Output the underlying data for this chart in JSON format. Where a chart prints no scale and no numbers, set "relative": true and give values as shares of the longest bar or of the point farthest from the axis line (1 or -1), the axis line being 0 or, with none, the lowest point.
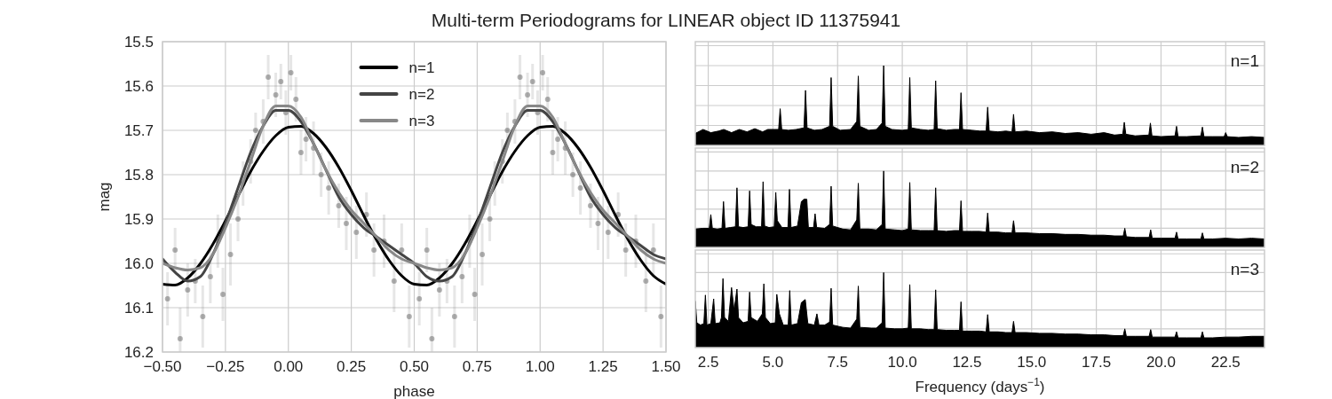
{
  "chart_data": [
    {
      "type": "line",
      "title": "Multi-term Periodograms for LINEAR object ID 11375941",
      "xlabel": "phase",
      "ylabel": "mag",
      "xlim": [
        -0.5,
        1.5
      ],
      "ylim": [
        16.2,
        15.5
      ],
      "xticks": [
        {
          "value": -0.5,
          "label": "−0.50"
        },
        {
          "value": -0.25,
          "label": "−0.25"
        },
        {
          "value": 0,
          "label": "0.00"
        },
        {
          "value": 0.25,
          "label": "0.25"
        },
        {
          "value": 0.5,
          "label": "0.50"
        },
        {
          "value": 0.75,
          "label": "0.75"
        },
        {
          "value": 1,
          "label": "1.00"
        },
        {
          "value": 1.25,
          "label": "1.25"
        },
        {
          "value": 1.5,
          "label": "1.50"
        }
      ],
      "yticks": [
        15.5,
        15.6,
        15.7,
        15.8,
        15.9,
        {
          "value": 16,
          "label": "16.0"
        },
        16.1,
        16.2
      ],
      "grid": true,
      "legend": "top",
      "series": [
        {
          "type": "scatter",
          "color": "#555555",
          "x": [
            -0.48,
            -0.45,
            -0.43,
            -0.4,
            -0.37,
            -0.34,
            -0.31,
            -0.28,
            -0.26,
            -0.23,
            -0.2,
            -0.18,
            -0.15,
            -0.13,
            -0.1,
            -0.08,
            -0.05,
            -0.03,
            -0.01,
            0.01,
            0.03,
            0.05,
            0.07,
            0.1,
            0.13,
            0.16,
            0.2,
            0.23,
            0.27,
            0.31,
            0.34,
            0.38,
            0.42,
            0.45,
            0.48,
            0.52,
            0.55,
            0.57,
            0.6,
            0.63,
            0.66,
            0.69,
            0.72,
            0.74,
            0.77,
            0.8,
            0.82,
            0.85,
            0.87,
            0.9,
            0.92,
            0.95,
            0.97,
            0.99,
            1.01,
            1.03,
            1.05,
            1.07,
            1.1,
            1.13,
            1.16,
            1.2,
            1.23,
            1.27,
            1.31,
            1.34,
            1.38,
            1.42,
            1.45,
            1.48
          ],
          "values": [
            16.08,
            15.97,
            16.17,
            16.06,
            16.04,
            16.12,
            16.03,
            15.95,
            16.07,
            15.98,
            15.9,
            15.82,
            15.77,
            15.7,
            15.68,
            15.58,
            15.62,
            15.59,
            15.66,
            15.57,
            15.63,
            15.75,
            15.72,
            15.74,
            15.8,
            15.83,
            15.87,
            15.91,
            15.93,
            15.89,
            15.97,
            15.95,
            16.04,
            15.97,
            16.12,
            16.08,
            15.97,
            16.17,
            16.06,
            16.04,
            16.12,
            16.03,
            15.95,
            16.07,
            15.98,
            15.9,
            15.82,
            15.77,
            15.7,
            15.68,
            15.58,
            15.62,
            15.59,
            15.66,
            15.57,
            15.63,
            15.75,
            15.72,
            15.74,
            15.8,
            15.83,
            15.87,
            15.91,
            15.93,
            15.89,
            15.97,
            15.95,
            16.04,
            15.97,
            16.12
          ],
          "errors": [
            0.06,
            0.05,
            0.07,
            0.06,
            0.05,
            0.07,
            0.06,
            0.06,
            0.06,
            0.07,
            0.05,
            0.05,
            0.05,
            0.04,
            0.05,
            0.05,
            0.05,
            0.04,
            0.05,
            0.04,
            0.05,
            0.05,
            0.05,
            0.06,
            0.05,
            0.06,
            0.05,
            0.06,
            0.06,
            0.05,
            0.06,
            0.06,
            0.07,
            0.06,
            0.07,
            0.06,
            0.05,
            0.07,
            0.06,
            0.05,
            0.07,
            0.06,
            0.06,
            0.06,
            0.07,
            0.05,
            0.05,
            0.05,
            0.04,
            0.05,
            0.05,
            0.05,
            0.04,
            0.05,
            0.04,
            0.05,
            0.05,
            0.05,
            0.06,
            0.05,
            0.06,
            0.05,
            0.06,
            0.06,
            0.05,
            0.06,
            0.06,
            0.07,
            0.06,
            0.07
          ]
        },
        {
          "name": "n=1",
          "color": "#000000",
          "x": [
            -0.5,
            -0.45,
            -0.4,
            -0.35,
            -0.3,
            -0.25,
            -0.2,
            -0.15,
            -0.1,
            -0.05,
            0,
            0.05,
            0.1,
            0.15,
            0.2,
            0.25,
            0.3,
            0.35,
            0.4,
            0.45,
            0.5,
            0.55,
            0.6,
            0.65,
            0.7,
            0.75,
            0.8,
            0.85,
            0.9,
            0.95,
            1,
            1.05,
            1.1,
            1.15,
            1.2,
            1.25,
            1.3,
            1.35,
            1.4,
            1.45,
            1.5
          ],
          "values": [
            16.047,
            16.049,
            16.033,
            16.001,
            15.957,
            15.904,
            15.848,
            15.793,
            15.747,
            15.712,
            15.693,
            15.691,
            15.707,
            15.739,
            15.783,
            15.836,
            15.893,
            15.947,
            15.993,
            16.028,
            16.047,
            16.049,
            16.033,
            16.001,
            15.957,
            15.904,
            15.848,
            15.793,
            15.747,
            15.712,
            15.693,
            15.691,
            15.707,
            15.739,
            15.783,
            15.836,
            15.893,
            15.947,
            15.993,
            16.028,
            16.047
          ]
        },
        {
          "name": "n=2",
          "color": "#444444",
          "x": [
            -0.5,
            -0.45,
            -0.4,
            -0.35,
            -0.3,
            -0.25,
            -0.2,
            -0.15,
            -0.1,
            -0.05,
            0,
            0.05,
            0.1,
            0.15,
            0.2,
            0.25,
            0.3,
            0.35,
            0.4,
            0.45,
            0.5,
            0.55,
            0.6,
            0.65,
            0.7,
            0.75,
            0.8,
            0.85,
            0.9,
            0.95,
            1,
            1.05,
            1.1,
            1.15,
            1.2,
            1.25,
            1.3,
            1.35,
            1.4,
            1.45,
            1.5
          ],
          "values": [
            15.99,
            16.02,
            16.04,
            16.03,
            15.98,
            15.91,
            15.83,
            15.75,
            15.69,
            15.655,
            15.655,
            15.68,
            15.73,
            15.79,
            15.85,
            15.89,
            15.92,
            15.94,
            15.96,
            15.98,
            16.0,
            16.03,
            16.04,
            16.03,
            15.98,
            15.91,
            15.83,
            15.75,
            15.69,
            15.655,
            15.655,
            15.68,
            15.73,
            15.79,
            15.85,
            15.89,
            15.92,
            15.94,
            15.96,
            15.98,
            15.99
          ]
        },
        {
          "name": "n=3",
          "color": "#888888",
          "x": [
            -0.5,
            -0.45,
            -0.4,
            -0.35,
            -0.3,
            -0.25,
            -0.2,
            -0.15,
            -0.1,
            -0.05,
            0,
            0.05,
            0.1,
            0.15,
            0.2,
            0.25,
            0.3,
            0.35,
            0.4,
            0.45,
            0.5,
            0.55,
            0.6,
            0.65,
            0.7,
            0.75,
            0.8,
            0.85,
            0.9,
            0.95,
            1,
            1.05,
            1.1,
            1.15,
            1.2,
            1.25,
            1.3,
            1.35,
            1.4,
            1.45,
            1.5
          ],
          "values": [
            16.0,
            16.01,
            16.015,
            16.01,
            15.98,
            15.92,
            15.85,
            15.77,
            15.69,
            15.645,
            15.645,
            15.67,
            15.73,
            15.79,
            15.84,
            15.88,
            15.91,
            15.94,
            15.97,
            15.99,
            16.0,
            16.01,
            16.015,
            16.01,
            15.98,
            15.92,
            15.85,
            15.77,
            15.69,
            15.645,
            15.645,
            15.67,
            15.73,
            15.79,
            15.84,
            15.88,
            15.91,
            15.94,
            15.97,
            15.99,
            16.0
          ]
        }
      ]
    },
    {
      "type": "area",
      "relative": true,
      "xlim": [
        2,
        24
      ],
      "xticks": [
        2.5,
        5,
        7.5,
        10,
        12.5,
        15,
        17.5,
        20,
        22.5
      ],
      "tick_labels": false,
      "grid": true,
      "annotations": [
        "n=1"
      ],
      "series": [
        {
          "color": "#000000",
          "x": [
            2.0,
            2.3,
            2.6,
            2.9,
            3.1,
            3.4,
            3.7,
            4.0,
            4.3,
            4.6,
            4.8,
            5.22,
            5.28,
            5.34,
            5.6,
            5.9,
            6.2,
            6.26,
            6.32,
            6.6,
            6.9,
            7.19,
            7.25,
            7.31,
            7.6,
            8.0,
            8.24,
            8.3,
            8.36,
            8.7,
            9.0,
            9.22,
            9.28,
            9.34,
            9.6,
            10.0,
            10.23,
            10.29,
            10.35,
            10.7,
            11.0,
            11.23,
            11.29,
            11.35,
            11.7,
            12.0,
            12.21,
            12.27,
            12.33,
            12.7,
            13.0,
            13.24,
            13.3,
            13.36,
            13.7,
            14.0,
            14.24,
            14.3,
            14.36,
            14.8,
            15.3,
            15.8,
            16.3,
            16.8,
            17.3,
            17.8,
            18.2,
            18.52,
            18.58,
            18.64,
            19.0,
            19.53,
            19.59,
            19.65,
            20.0,
            20.54,
            20.6,
            20.66,
            21.0,
            21.54,
            21.6,
            21.66,
            22.0,
            22.44,
            22.5,
            22.56,
            23.0,
            23.5,
            24.0
          ],
          "values": [
            0.15,
            0.2,
            0.16,
            0.18,
            0.2,
            0.16,
            0.2,
            0.17,
            0.21,
            0.17,
            0.2,
            0.2,
            0.46,
            0.2,
            0.19,
            0.2,
            0.22,
            0.69,
            0.22,
            0.19,
            0.2,
            0.24,
            0.85,
            0.24,
            0.19,
            0.2,
            0.3,
            0.87,
            0.24,
            0.19,
            0.2,
            0.28,
            1,
            0.24,
            0.2,
            0.19,
            0.2,
            0.85,
            0.22,
            0.2,
            0.19,
            0.2,
            0.81,
            0.21,
            0.19,
            0.2,
            0.2,
            0.66,
            0.2,
            0.19,
            0.18,
            0.18,
            0.48,
            0.18,
            0.17,
            0.18,
            0.17,
            0.39,
            0.17,
            0.18,
            0.16,
            0.17,
            0.15,
            0.16,
            0.14,
            0.16,
            0.13,
            0.14,
            0.29,
            0.14,
            0.12,
            0.13,
            0.28,
            0.12,
            0.11,
            0.12,
            0.24,
            0.11,
            0.11,
            0.12,
            0.23,
            0.11,
            0.11,
            0.11,
            0.16,
            0.11,
            0.1,
            0.11,
            0.1
          ]
        }
      ]
    },
    {
      "type": "area",
      "relative": true,
      "xlim": [
        2,
        24
      ],
      "xticks": [
        2.5,
        5,
        7.5,
        10,
        12.5,
        15,
        17.5,
        20,
        22.5
      ],
      "tick_labels": false,
      "grid": true,
      "annotations": [
        "n=2"
      ],
      "series": [
        {
          "color": "#000000",
          "x": [
            2.0,
            2.3,
            2.54,
            2.6,
            2.66,
            2.85,
            3.03,
            3.09,
            3.15,
            3.35,
            3.55,
            3.61,
            3.67,
            3.85,
            4.04,
            4.1,
            4.16,
            4.35,
            4.56,
            4.62,
            4.68,
            4.85,
            5.05,
            5.11,
            5.17,
            5.35,
            5.58,
            5.64,
            5.7,
            5.95,
            6.1,
            6.2,
            6.31,
            6.37,
            6.57,
            6.63,
            6.69,
            7.0,
            7.19,
            7.25,
            7.31,
            7.7,
            8.0,
            8.24,
            8.3,
            8.36,
            8.7,
            9.0,
            9.22,
            9.28,
            9.34,
            9.7,
            10.0,
            10.23,
            10.29,
            10.35,
            10.7,
            11.0,
            11.23,
            11.29,
            11.35,
            11.7,
            12.0,
            12.21,
            12.27,
            12.33,
            12.7,
            13.0,
            13.24,
            13.3,
            13.36,
            13.7,
            14.0,
            14.24,
            14.3,
            14.36,
            14.8,
            15.3,
            15.8,
            16.3,
            16.8,
            17.3,
            17.8,
            18.2,
            18.54,
            18.6,
            18.66,
            19.0,
            19.54,
            19.6,
            19.66,
            20.0,
            20.54,
            20.6,
            20.66,
            21.0,
            21.54,
            21.6,
            21.66,
            22.0,
            22.5,
            23.0,
            23.5,
            24.0
          ],
          "values": [
            0.24,
            0.25,
            0.25,
            0.43,
            0.25,
            0.24,
            0.25,
            0.6,
            0.25,
            0.26,
            0.27,
            0.78,
            0.27,
            0.26,
            0.27,
            0.74,
            0.3,
            0.27,
            0.27,
            0.86,
            0.28,
            0.26,
            0.27,
            0.72,
            0.35,
            0.26,
            0.26,
            0.76,
            0.26,
            0.28,
            0.6,
            0.63,
            0.63,
            0.26,
            0.26,
            0.44,
            0.26,
            0.25,
            0.3,
            0.8,
            0.28,
            0.24,
            0.23,
            0.36,
            0.84,
            0.24,
            0.24,
            0.23,
            0.3,
            1,
            0.24,
            0.23,
            0.22,
            0.24,
            0.85,
            0.23,
            0.22,
            0.22,
            0.22,
            0.78,
            0.22,
            0.21,
            0.22,
            0.22,
            0.61,
            0.21,
            0.21,
            0.21,
            0.2,
            0.45,
            0.2,
            0.2,
            0.19,
            0.19,
            0.35,
            0.19,
            0.19,
            0.18,
            0.18,
            0.17,
            0.17,
            0.16,
            0.16,
            0.15,
            0.15,
            0.25,
            0.14,
            0.13,
            0.13,
            0.23,
            0.12,
            0.12,
            0.12,
            0.2,
            0.11,
            0.11,
            0.11,
            0.19,
            0.11,
            0.11,
            0.12,
            0.11,
            0.12,
            0.11
          ]
        }
      ]
    },
    {
      "type": "area",
      "relative": true,
      "xlabel": "Frequency (days$^{−1}$)",
      "xlim": [
        2,
        24
      ],
      "xticks": [
        2.5,
        {
          "value": 5,
          "label": "5.0"
        },
        7.5,
        {
          "value": 10,
          "label": "10.0"
        },
        12.5,
        {
          "value": 15,
          "label": "15.0"
        },
        17.5,
        {
          "value": 20,
          "label": "20.0"
        },
        22.5
      ],
      "tick_labels": "x",
      "grid": true,
      "annotations": [
        "n=3"
      ],
      "series": [
        {
          "color": "#000000",
          "x": [
            2.0,
            2.06,
            2.2,
            2.33,
            2.39,
            2.45,
            2.6,
            2.71,
            2.77,
            2.95,
            3.01,
            3.07,
            3.13,
            3.28,
            3.4,
            3.5,
            3.61,
            3.67,
            3.85,
            4.04,
            4.1,
            4.16,
            4.4,
            4.59,
            4.65,
            4.71,
            4.9,
            5.09,
            5.15,
            5.25,
            5.4,
            5.59,
            5.65,
            5.71,
            5.95,
            6.1,
            6.25,
            6.35,
            6.6,
            6.7,
            6.78,
            7.0,
            7.19,
            7.25,
            7.31,
            7.7,
            8.0,
            8.24,
            8.3,
            8.36,
            8.8,
            9.0,
            9.22,
            9.28,
            9.34,
            9.7,
            10.0,
            10.23,
            10.29,
            10.35,
            10.7,
            11.0,
            11.23,
            11.29,
            11.35,
            11.7,
            12.0,
            12.21,
            12.27,
            12.33,
            12.7,
            13.0,
            13.24,
            13.3,
            13.36,
            13.7,
            14.0,
            14.24,
            14.3,
            14.36,
            14.8,
            15.3,
            15.8,
            16.3,
            16.8,
            17.3,
            17.8,
            18.2,
            18.54,
            18.6,
            18.66,
            19.0,
            19.54,
            19.6,
            19.66,
            20.0,
            20.54,
            20.6,
            20.66,
            21.0,
            21.54,
            21.6,
            21.66,
            22.0,
            22.5,
            23.0,
            23.5,
            24.0
          ],
          "values": [
            0.62,
            0.33,
            0.3,
            0.32,
            0.7,
            0.3,
            0.32,
            0.65,
            0.32,
            0.33,
            0.4,
            0.92,
            0.4,
            0.35,
            0.8,
            0.5,
            0.78,
            0.4,
            0.33,
            0.35,
            0.74,
            0.4,
            0.35,
            0.45,
            0.85,
            0.4,
            0.32,
            0.33,
            0.71,
            0.45,
            0.3,
            0.3,
            0.76,
            0.3,
            0.32,
            0.6,
            0.64,
            0.32,
            0.3,
            0.45,
            0.3,
            0.3,
            0.34,
            0.79,
            0.3,
            0.27,
            0.26,
            0.38,
            0.82,
            0.27,
            0.26,
            0.26,
            0.33,
            1,
            0.26,
            0.25,
            0.25,
            0.26,
            0.84,
            0.25,
            0.25,
            0.24,
            0.24,
            0.77,
            0.24,
            0.23,
            0.23,
            0.23,
            0.61,
            0.22,
            0.22,
            0.22,
            0.21,
            0.44,
            0.21,
            0.21,
            0.2,
            0.2,
            0.35,
            0.2,
            0.2,
            0.19,
            0.19,
            0.18,
            0.18,
            0.17,
            0.17,
            0.16,
            0.16,
            0.25,
            0.15,
            0.15,
            0.15,
            0.24,
            0.14,
            0.14,
            0.14,
            0.21,
            0.13,
            0.13,
            0.13,
            0.21,
            0.13,
            0.13,
            0.14,
            0.14,
            0.15,
            0.15
          ]
        }
      ]
    }
  ]
}
